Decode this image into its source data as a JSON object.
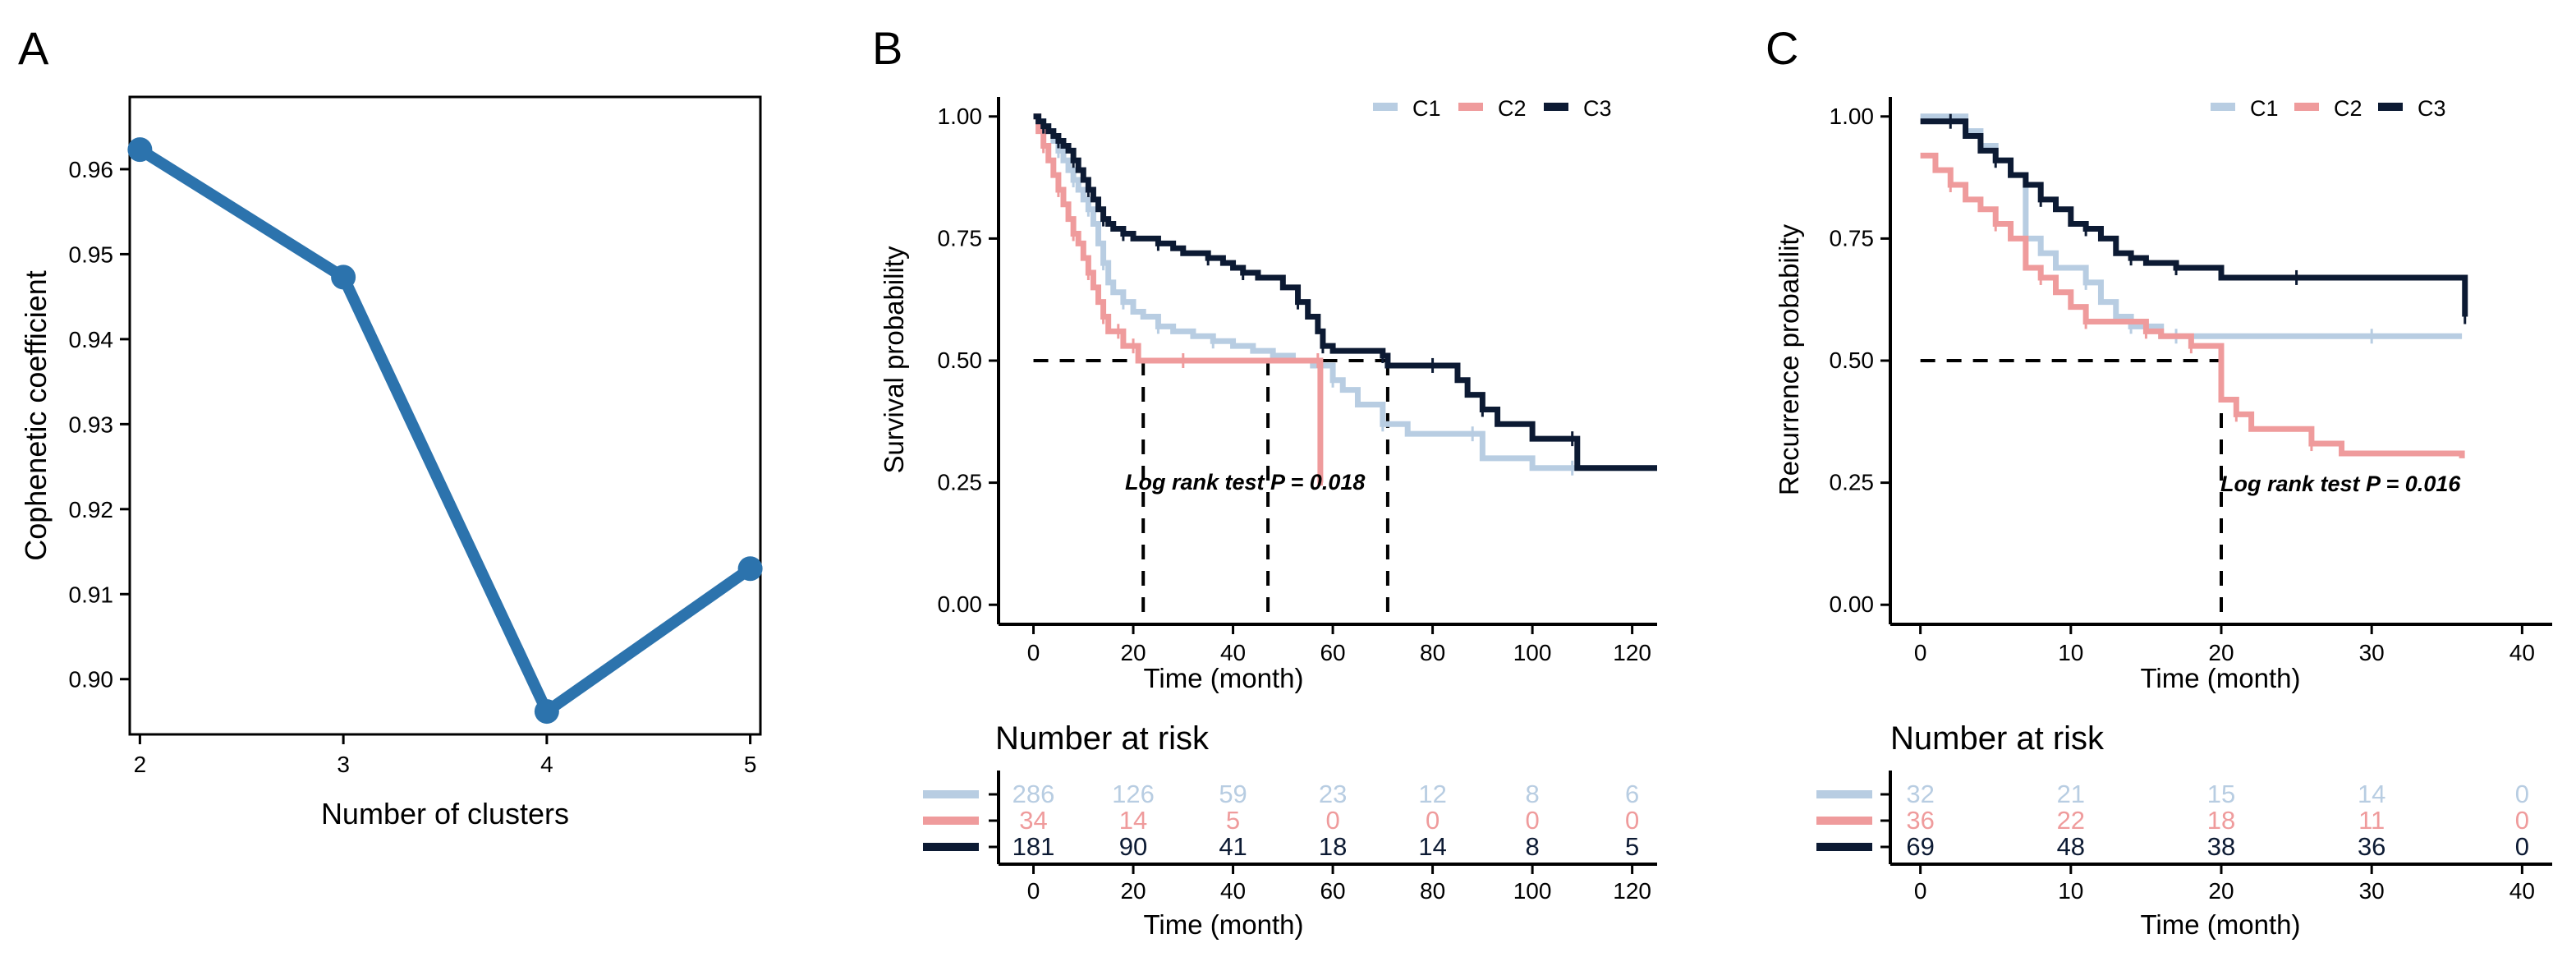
{
  "colors": {
    "c1": "#b8cde2",
    "c2": "#ef9b9c",
    "c3": "#0c1a33",
    "line_a": "#2c73ad",
    "axis": "#000000"
  },
  "chart_data": [
    {
      "panel": "A",
      "type": "line",
      "xlabel": "Number of clusters",
      "ylabel": "Cophenetic coefficient",
      "x": [
        2,
        3,
        4,
        5
      ],
      "y": [
        0.9623,
        0.9473,
        0.8962,
        0.913
      ],
      "xlim": [
        1.95,
        5.05
      ],
      "ylim": [
        0.8935,
        0.9685
      ],
      "xticks": [
        2,
        3,
        4,
        5
      ],
      "yticks": [
        0.9,
        0.91,
        0.92,
        0.93,
        0.94,
        0.95,
        0.96
      ],
      "ytick_labels": [
        "0.90",
        "0.91",
        "0.92",
        "0.93",
        "0.94",
        "0.95",
        "0.96"
      ]
    },
    {
      "panel": "B",
      "type": "line",
      "subtype": "kaplan-meier",
      "xlabel": "Time (month)",
      "ylabel": "Survival probability",
      "xlim": [
        -7,
        125
      ],
      "ylim": [
        -0.04,
        1.04
      ],
      "xticks": [
        0,
        20,
        40,
        60,
        80,
        100,
        120
      ],
      "yticks": [
        0.0,
        0.25,
        0.5,
        0.75,
        1.0
      ],
      "ytick_labels": [
        "0.00",
        "0.25",
        "0.50",
        "0.75",
        "1.00"
      ],
      "legend": [
        "C1",
        "C2",
        "C3"
      ],
      "legend_position": "top-right",
      "annotation": "Log rank test P = 0.018",
      "median_lines": {
        "y": 0.5,
        "x": [
          22,
          47,
          71
        ]
      },
      "series": [
        {
          "name": "C1",
          "x": [
            0,
            1,
            2,
            3,
            4,
            5,
            6,
            7,
            8,
            9,
            10,
            11,
            12,
            13,
            14,
            15,
            16,
            18,
            20,
            22,
            25,
            28,
            32,
            36,
            40,
            44,
            48,
            52,
            56,
            60,
            62,
            65,
            70,
            75,
            80,
            88,
            90,
            100,
            108,
            125
          ],
          "y": [
            1.0,
            0.99,
            0.98,
            0.97,
            0.95,
            0.93,
            0.91,
            0.89,
            0.87,
            0.85,
            0.83,
            0.81,
            0.78,
            0.74,
            0.7,
            0.66,
            0.64,
            0.62,
            0.6,
            0.59,
            0.57,
            0.56,
            0.55,
            0.54,
            0.53,
            0.52,
            0.51,
            0.5,
            0.49,
            0.46,
            0.44,
            0.41,
            0.37,
            0.35,
            0.35,
            0.35,
            0.3,
            0.28,
            0.28,
            0.28
          ]
        },
        {
          "name": "C2",
          "x": [
            0,
            1,
            2,
            3,
            4,
            5,
            6,
            7,
            8,
            9,
            10,
            11,
            12,
            13,
            14,
            15,
            16,
            17,
            18,
            19,
            20,
            21,
            22,
            30,
            40,
            50,
            57,
            57.5,
            58
          ],
          "y": [
            1.0,
            0.97,
            0.94,
            0.91,
            0.88,
            0.85,
            0.82,
            0.79,
            0.76,
            0.74,
            0.71,
            0.68,
            0.65,
            0.62,
            0.59,
            0.56,
            0.56,
            0.56,
            0.53,
            0.53,
            0.53,
            0.5,
            0.5,
            0.5,
            0.5,
            0.5,
            0.5,
            0.25,
            0.25
          ]
        },
        {
          "name": "C3",
          "x": [
            0,
            1,
            2,
            3,
            4,
            5,
            6,
            7,
            8,
            9,
            10,
            11,
            12,
            13,
            14,
            15,
            16,
            18,
            20,
            22,
            25,
            28,
            30,
            35,
            38,
            40,
            42,
            45,
            50,
            53,
            55,
            57,
            58,
            60,
            65,
            70,
            71,
            75,
            80,
            85,
            87,
            90,
            93,
            100,
            108,
            109,
            125
          ],
          "y": [
            1.0,
            0.99,
            0.98,
            0.97,
            0.96,
            0.95,
            0.94,
            0.93,
            0.91,
            0.89,
            0.87,
            0.85,
            0.83,
            0.81,
            0.79,
            0.78,
            0.77,
            0.76,
            0.75,
            0.75,
            0.74,
            0.73,
            0.72,
            0.71,
            0.7,
            0.69,
            0.68,
            0.67,
            0.65,
            0.62,
            0.59,
            0.56,
            0.53,
            0.52,
            0.52,
            0.51,
            0.49,
            0.49,
            0.49,
            0.46,
            0.43,
            0.4,
            0.37,
            0.34,
            0.34,
            0.28,
            0.28
          ]
        }
      ],
      "risk_table": {
        "title": "Number at risk",
        "x": [
          0,
          20,
          40,
          60,
          80,
          100,
          120
        ],
        "rows": [
          {
            "name": "C1",
            "values": [
              "286",
              "126",
              "59",
              "23",
              "12",
              "8",
              "6"
            ]
          },
          {
            "name": "C2",
            "values": [
              "34",
              "14",
              "5",
              "0",
              "0",
              "0",
              "0"
            ]
          },
          {
            "name": "C3",
            "values": [
              "181",
              "90",
              "41",
              "18",
              "14",
              "8",
              "5"
            ]
          }
        ],
        "xlabel": "Time (month)"
      }
    },
    {
      "panel": "C",
      "type": "line",
      "subtype": "kaplan-meier",
      "xlabel": "Time (month)",
      "ylabel": "Recurrence probability",
      "xlim": [
        -2,
        42
      ],
      "ylim": [
        -0.04,
        1.04
      ],
      "xticks": [
        0,
        10,
        20,
        30,
        40
      ],
      "yticks": [
        0.0,
        0.25,
        0.5,
        0.75,
        1.0
      ],
      "ytick_labels": [
        "0.00",
        "0.25",
        "0.50",
        "0.75",
        "1.00"
      ],
      "legend": [
        "C1",
        "C2",
        "C3"
      ],
      "legend_position": "top-right",
      "annotation": "Log rank test P = 0.016",
      "median_lines": {
        "y": 0.5,
        "x": [
          20
        ]
      },
      "series": [
        {
          "name": "C1",
          "x": [
            0,
            3,
            4,
            5,
            6,
            7,
            8,
            9,
            11,
            12,
            13,
            14,
            15,
            16,
            17,
            20,
            25,
            30,
            36
          ],
          "y": [
            1.0,
            0.97,
            0.94,
            0.91,
            0.88,
            0.75,
            0.72,
            0.69,
            0.66,
            0.62,
            0.59,
            0.57,
            0.57,
            0.55,
            0.55,
            0.55,
            0.55,
            0.55,
            0.55
          ]
        },
        {
          "name": "C2",
          "x": [
            0,
            1,
            2,
            3,
            4,
            5,
            6,
            7,
            8,
            9,
            10,
            11,
            12,
            14,
            15,
            16,
            17,
            18,
            19,
            20,
            21,
            22,
            24,
            26,
            28,
            36
          ],
          "y": [
            0.92,
            0.89,
            0.86,
            0.83,
            0.81,
            0.78,
            0.75,
            0.69,
            0.67,
            0.64,
            0.61,
            0.58,
            0.58,
            0.58,
            0.56,
            0.55,
            0.55,
            0.53,
            0.53,
            0.42,
            0.39,
            0.36,
            0.36,
            0.33,
            0.31,
            0.3
          ]
        },
        {
          "name": "C3",
          "x": [
            0,
            1,
            2,
            3,
            4,
            5,
            6,
            7,
            8,
            9,
            10,
            11,
            12,
            13,
            14,
            15,
            16,
            17,
            18,
            20,
            25,
            30,
            36,
            36.2
          ],
          "y": [
            0.99,
            0.99,
            0.99,
            0.96,
            0.93,
            0.91,
            0.88,
            0.86,
            0.83,
            0.81,
            0.78,
            0.77,
            0.75,
            0.72,
            0.71,
            0.7,
            0.7,
            0.69,
            0.69,
            0.67,
            0.67,
            0.67,
            0.67,
            0.59
          ]
        }
      ],
      "risk_table": {
        "title": "Number at risk",
        "x": [
          0,
          10,
          20,
          30,
          40
        ],
        "rows": [
          {
            "name": "C1",
            "values": [
              "32",
              "21",
              "15",
              "14",
              "0"
            ]
          },
          {
            "name": "C2",
            "values": [
              "36",
              "22",
              "18",
              "11",
              "0"
            ]
          },
          {
            "name": "C3",
            "values": [
              "69",
              "48",
              "38",
              "36",
              "0"
            ]
          }
        ],
        "xlabel": "Time (month)"
      }
    }
  ]
}
